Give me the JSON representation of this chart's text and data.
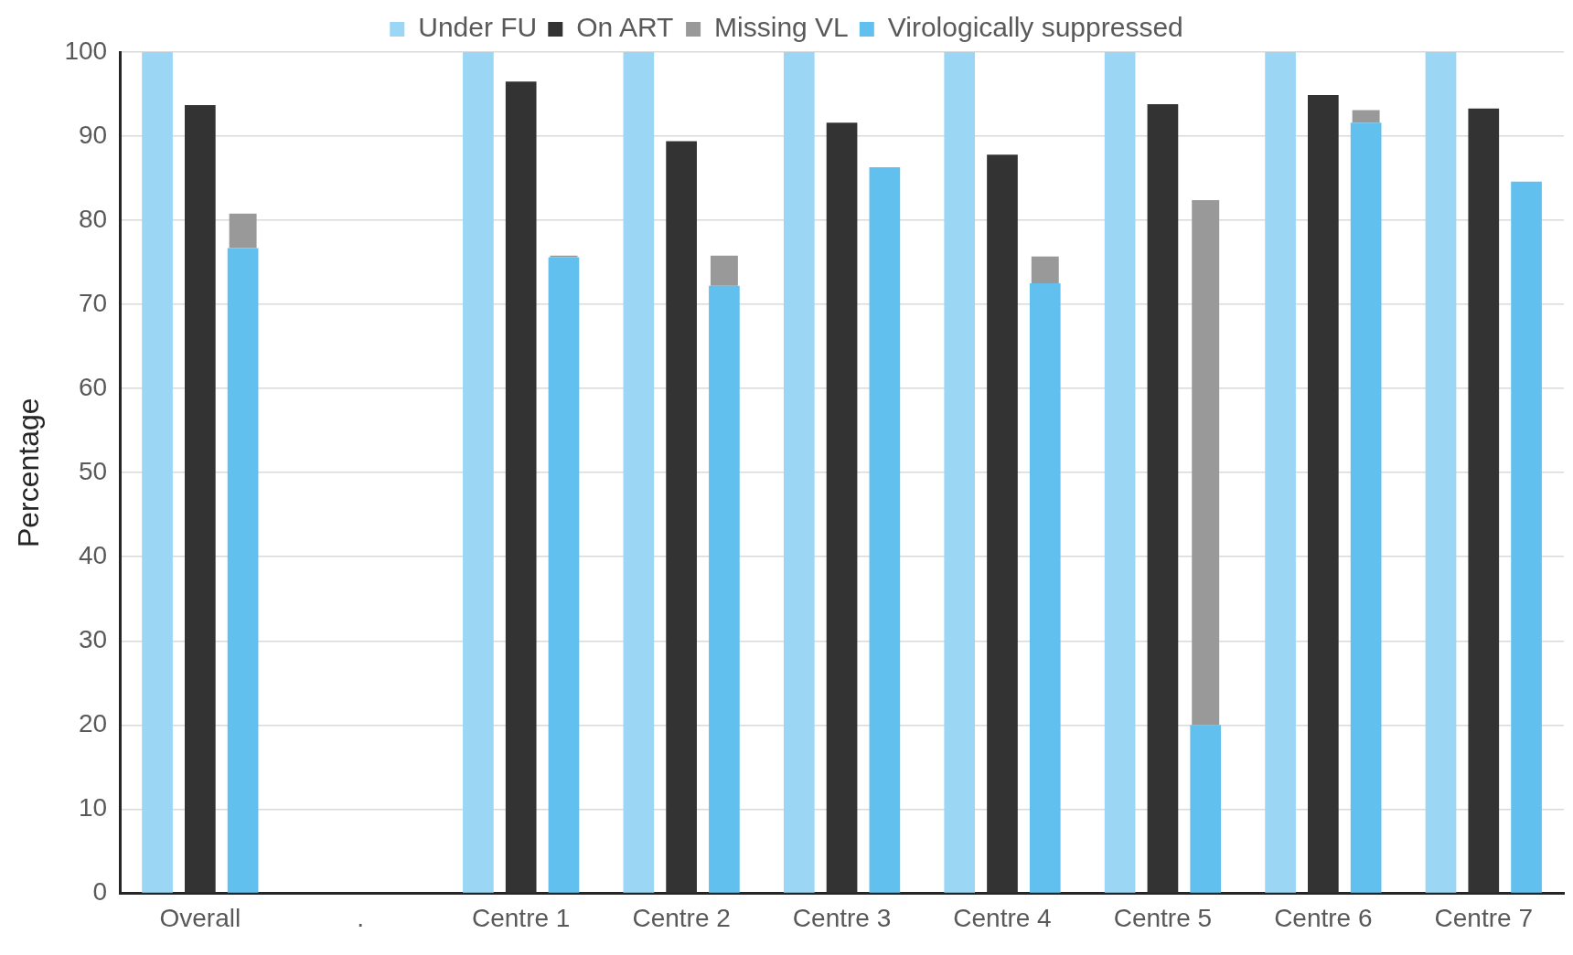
{
  "chart_data": {
    "type": "bar",
    "ylabel": "Percentage",
    "categories": [
      "Overall",
      ".",
      "Centre 1",
      "Centre 2",
      "Centre 3",
      "Centre 4",
      "Centre 5",
      "Centre 6",
      "Centre 7"
    ],
    "series": [
      {
        "name": "Under FU",
        "color": "#9bd7f5",
        "values": [
          100,
          null,
          100,
          100,
          100,
          100,
          100,
          100,
          100
        ]
      },
      {
        "name": "On ART",
        "color": "#333333",
        "values": [
          93.7,
          null,
          96.5,
          89.4,
          91.6,
          87.8,
          93.8,
          94.9,
          93.3
        ]
      },
      {
        "name": "Virologically suppressed",
        "color": "#62c0ef",
        "values": [
          76.7,
          null,
          75.6,
          72.2,
          86.3,
          72.5,
          20.0,
          91.6,
          84.6
        ]
      },
      {
        "name": "Missing VL",
        "color": "#999999",
        "base": [
          76.7,
          null,
          75.6,
          72.2,
          null,
          72.5,
          20.0,
          91.6,
          null
        ],
        "values": [
          4.1,
          null,
          0.2,
          3.6,
          null,
          3.2,
          62.4,
          1.5,
          null
        ]
      }
    ],
    "ylim": [
      0,
      100
    ],
    "yticks": [
      0,
      10,
      20,
      30,
      40,
      50,
      60,
      70,
      80,
      90,
      100
    ],
    "grid": "y",
    "legend": "top"
  }
}
